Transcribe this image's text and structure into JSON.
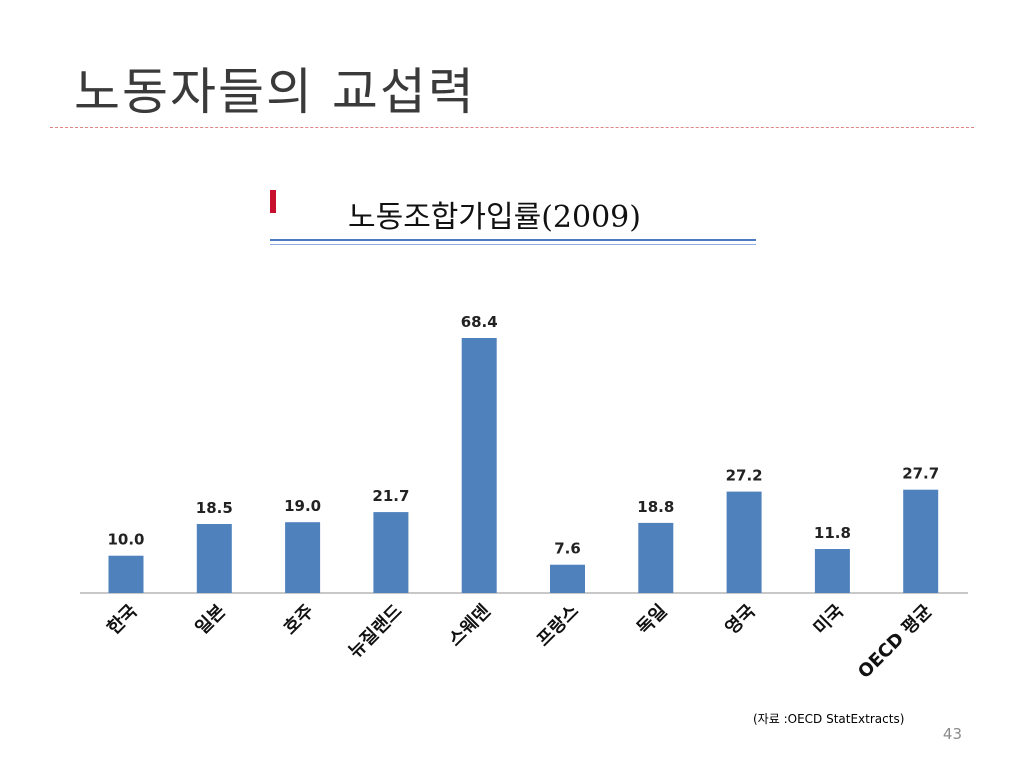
{
  "slide": {
    "title": "노동자들의 교섭력",
    "source": "(자료 :OECD StatExtracts)",
    "page_number": "43"
  },
  "chart_data": {
    "type": "bar",
    "title": "노동조합가입률(2009)",
    "xlabel": "",
    "ylabel": "",
    "ylim": [
      0,
      75
    ],
    "grid": false,
    "legend": "none",
    "color": "#4f81bd",
    "categories": [
      "한국",
      "일본",
      "호주",
      "뉴질랜드",
      "스웨덴",
      "프랑스",
      "독일",
      "영국",
      "미국",
      "OECD 평균"
    ],
    "values": [
      10.0,
      18.5,
      19.0,
      21.7,
      68.4,
      7.6,
      18.8,
      27.2,
      11.8,
      27.7
    ],
    "value_labels": [
      "10.0",
      "18.5",
      "19.0",
      "21.7",
      "68.4",
      "7.6",
      "18.8",
      "27.2",
      "11.8",
      "27.7"
    ]
  }
}
